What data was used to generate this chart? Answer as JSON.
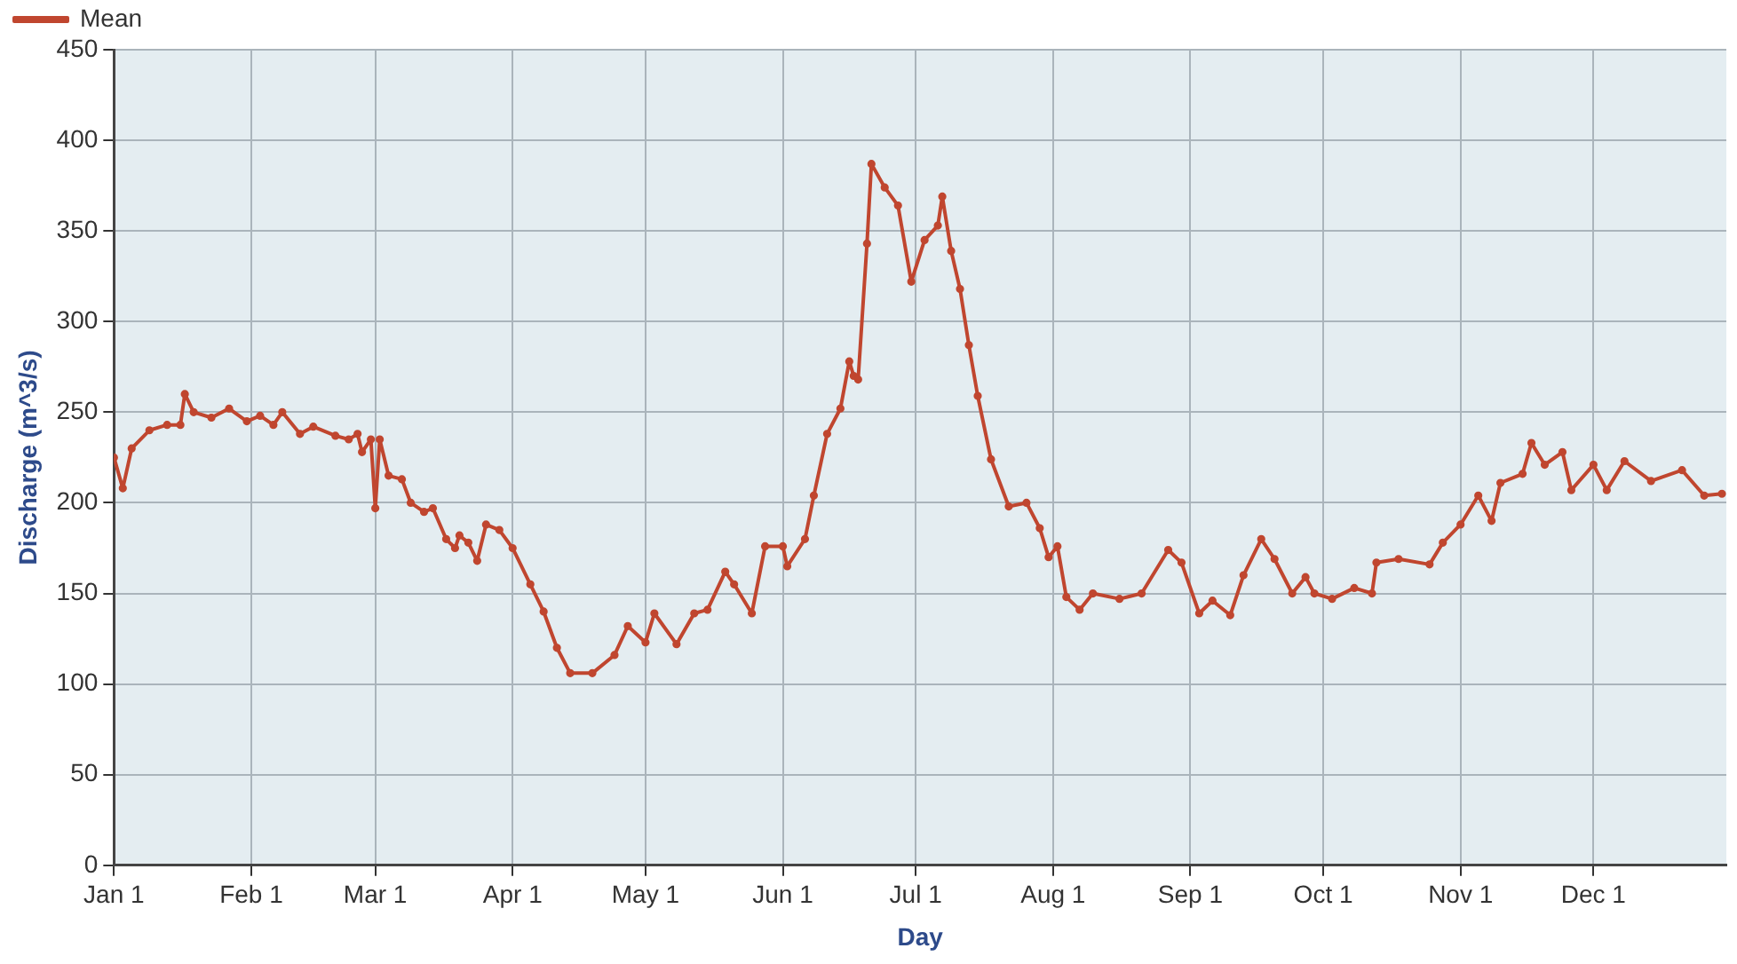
{
  "chart_data": {
    "type": "line",
    "xlabel": "Day",
    "ylabel": "Discharge (m^3/s)",
    "xlim": [
      "--01-01",
      "--12-31"
    ],
    "ylim": [
      0,
      450
    ],
    "yticks": [
      0,
      50,
      100,
      150,
      200,
      250,
      300,
      350,
      400,
      450
    ],
    "xticks": [
      {
        "value": "--01-01",
        "label": "Jan 1"
      },
      {
        "value": "--02-01",
        "label": "Feb 1"
      },
      {
        "value": "--03-01",
        "label": "Mar 1"
      },
      {
        "value": "--04-01",
        "label": "Apr 1"
      },
      {
        "value": "--05-01",
        "label": "May 1"
      },
      {
        "value": "--06-01",
        "label": "Jun 1"
      },
      {
        "value": "--07-01",
        "label": "Jul 1"
      },
      {
        "value": "--08-01",
        "label": "Aug 1"
      },
      {
        "value": "--09-01",
        "label": "Sep 1"
      },
      {
        "value": "--10-01",
        "label": "Oct 1"
      },
      {
        "value": "--11-01",
        "label": "Nov 1"
      },
      {
        "value": "--12-01",
        "label": "Dec 1"
      }
    ],
    "grid": true,
    "legend": "top left",
    "marker": "circle",
    "line_style": "solid",
    "series": [
      {
        "name": "Mean",
        "color": "#c0462f",
        "x": [
          "--01-01",
          "--01-03",
          "--01-05",
          "--01-09",
          "--01-13",
          "--01-16",
          "--01-17",
          "--01-19",
          "--01-23",
          "--01-27",
          "--01-31",
          "--02-03",
          "--02-06",
          "--02-08",
          "--02-12",
          "--02-15",
          "--02-20",
          "--02-23",
          "--02-25",
          "--02-26",
          "--02-28",
          "--03-01",
          "--03-02",
          "--03-04",
          "--03-07",
          "--03-09",
          "--03-12",
          "--03-14",
          "--03-17",
          "--03-19",
          "--03-20",
          "--03-22",
          "--03-24",
          "--03-26",
          "--03-29",
          "--04-01",
          "--04-05",
          "--04-08",
          "--04-11",
          "--04-14",
          "--04-19",
          "--04-24",
          "--04-27",
          "--05-01",
          "--05-03",
          "--05-08",
          "--05-12",
          "--05-15",
          "--05-19",
          "--05-21",
          "--05-25",
          "--05-28",
          "--06-01",
          "--06-02",
          "--06-06",
          "--06-08",
          "--06-11",
          "--06-14",
          "--06-16",
          "--06-17",
          "--06-18",
          "--06-20",
          "--06-21",
          "--06-24",
          "--06-27",
          "--06-30",
          "--07-03",
          "--07-06",
          "--07-07",
          "--07-09",
          "--07-11",
          "--07-13",
          "--07-15",
          "--07-18",
          "--07-22",
          "--07-26",
          "--07-29",
          "--07-31",
          "--08-02",
          "--08-04",
          "--08-07",
          "--08-10",
          "--08-16",
          "--08-21",
          "--08-27",
          "--08-30",
          "--09-03",
          "--09-06",
          "--09-10",
          "--09-13",
          "--09-17",
          "--09-20",
          "--09-24",
          "--09-27",
          "--09-29",
          "--10-03",
          "--10-08",
          "--10-12",
          "--10-13",
          "--10-18",
          "--10-25",
          "--10-28",
          "--11-01",
          "--11-05",
          "--11-08",
          "--11-10",
          "--11-15",
          "--11-17",
          "--11-20",
          "--11-24",
          "--11-26",
          "--12-01",
          "--12-04",
          "--12-08",
          "--12-14",
          "--12-21",
          "--12-26",
          "--12-30"
        ],
        "values": [
          225,
          208,
          230,
          240,
          243,
          243,
          260,
          250,
          247,
          252,
          245,
          248,
          243,
          250,
          238,
          242,
          237,
          235,
          238,
          228,
          235,
          197,
          235,
          215,
          213,
          200,
          195,
          197,
          180,
          175,
          182,
          178,
          168,
          188,
          185,
          175,
          155,
          140,
          120,
          106,
          106,
          116,
          132,
          123,
          139,
          122,
          139,
          141,
          162,
          155,
          139,
          176,
          176,
          165,
          180,
          204,
          238,
          252,
          278,
          270,
          268,
          343,
          387,
          374,
          364,
          322,
          345,
          353,
          369,
          339,
          318,
          287,
          259,
          224,
          198,
          200,
          186,
          170,
          176,
          148,
          141,
          150,
          147,
          150,
          174,
          167,
          139,
          146,
          138,
          160,
          180,
          169,
          150,
          159,
          150,
          147,
          153,
          150,
          167,
          169,
          166,
          178,
          188,
          204,
          190,
          211,
          216,
          233,
          221,
          228,
          207,
          221,
          207,
          223,
          212,
          218,
          204,
          205
        ]
      }
    ]
  }
}
